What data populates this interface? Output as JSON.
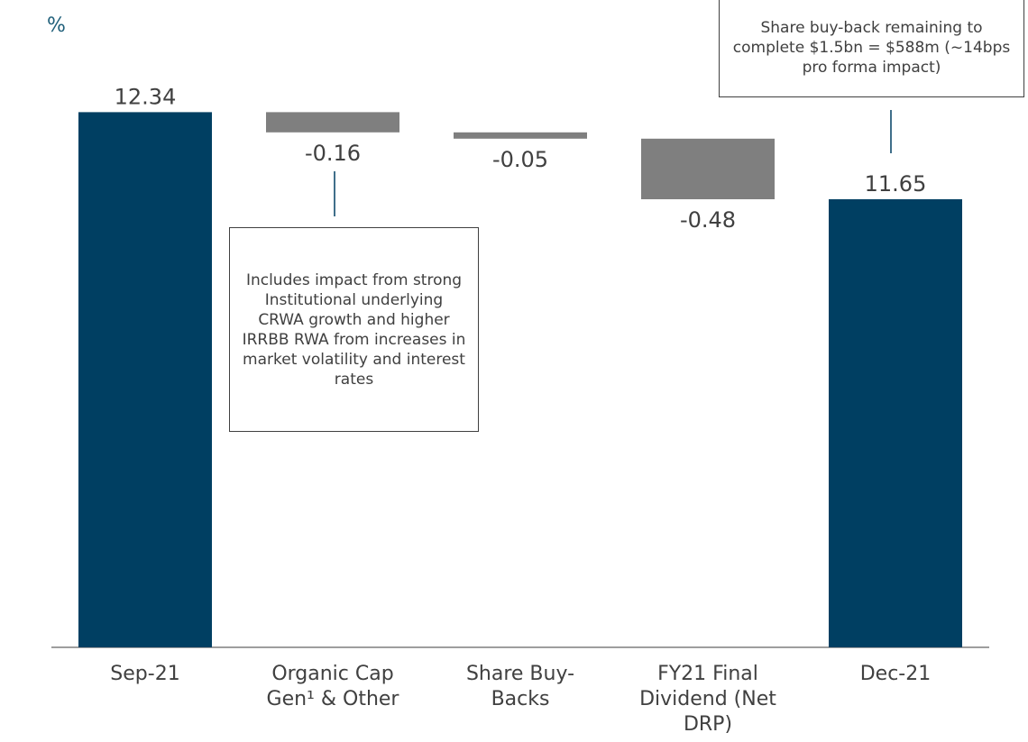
{
  "chart_data": {
    "type": "waterfall",
    "unit_label": "%",
    "categories": [
      "Sep-21",
      "Organic Cap Gen¹ & Other",
      "Share Buy-Backs",
      "FY21 Final Dividend (Net DRP)",
      "Dec-21"
    ],
    "values": [
      12.34,
      -0.16,
      -0.05,
      -0.48,
      11.65
    ],
    "totals": [
      true,
      false,
      false,
      false,
      true
    ],
    "total_color": "#003f62",
    "delta_color": "#7f7f7f",
    "ylim": [
      8.1,
      13.2
    ],
    "annotations": [
      "Includes impact from strong Institutional underlying CRWA growth and higher IRRBB RWA from increases in market volatility and interest rates",
      "Share buy-back remaining to complete $1.5bn = $588m (~14bps pro forma impact)"
    ]
  }
}
